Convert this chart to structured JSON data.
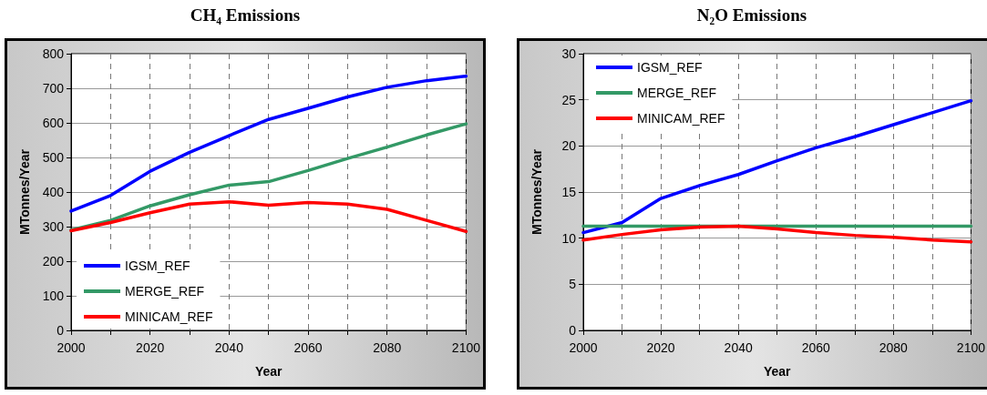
{
  "chart_data": [
    {
      "type": "line",
      "title": "CH₄ Emissions",
      "xlabel": "Year",
      "ylabel": "MTonnes/Year",
      "x": [
        2000,
        2010,
        2020,
        2030,
        2040,
        2050,
        2060,
        2070,
        2080,
        2090,
        2100
      ],
      "series": [
        {
          "name": "IGSM_REF",
          "color": "#0000ff",
          "values": [
            345,
            390,
            460,
            515,
            563,
            610,
            642,
            675,
            703,
            722,
            735
          ]
        },
        {
          "name": "MERGE_REF",
          "color": "#339966",
          "values": [
            290,
            318,
            360,
            392,
            420,
            430,
            462,
            497,
            530,
            565,
            597
          ]
        },
        {
          "name": "MINICAM_REF",
          "color": "#ff0000",
          "values": [
            288,
            312,
            340,
            365,
            372,
            362,
            370,
            365,
            350,
            318,
            286
          ]
        }
      ],
      "xlim": [
        2000,
        2100
      ],
      "xticks": [
        2000,
        {
          "value": 2010,
          "label": null
        },
        2020,
        {
          "value": 2030,
          "label": null
        },
        2040,
        {
          "value": 2050,
          "label": null
        },
        2060,
        {
          "value": 2070,
          "label": null
        },
        2080,
        {
          "value": 2090,
          "label": null
        },
        2100
      ],
      "ylim": [
        0,
        800
      ],
      "yticks": [
        0,
        100,
        200,
        300,
        400,
        500,
        600,
        700,
        800
      ],
      "grid": true,
      "legend": "bottom left",
      "marker": "none"
    },
    {
      "type": "line",
      "title": "N₂O Emissions",
      "xlabel": "Year",
      "ylabel": "MTonnes/Year",
      "x": [
        2000,
        2010,
        2020,
        2030,
        2040,
        2050,
        2060,
        2070,
        2080,
        2090,
        2100
      ],
      "series": [
        {
          "name": "IGSM_REF",
          "color": "#0000ff",
          "values": [
            10.6,
            11.7,
            14.3,
            15.7,
            16.9,
            18.4,
            19.8,
            21.0,
            22.3,
            23.6,
            24.9
          ]
        },
        {
          "name": "MERGE_REF",
          "color": "#339966",
          "values": [
            11.3,
            11.3,
            11.3,
            11.3,
            11.3,
            11.3,
            11.3,
            11.3,
            11.3,
            11.3,
            11.3
          ]
        },
        {
          "name": "MINICAM_REF",
          "color": "#ff0000",
          "values": [
            9.8,
            10.4,
            10.9,
            11.2,
            11.3,
            11.0,
            10.6,
            10.3,
            10.1,
            9.8,
            9.6
          ]
        }
      ],
      "xlim": [
        2000,
        2100
      ],
      "xticks": [
        2000,
        {
          "value": 2010,
          "label": null
        },
        2020,
        {
          "value": 2030,
          "label": null
        },
        2040,
        {
          "value": 2050,
          "label": null
        },
        2060,
        {
          "value": 2070,
          "label": null
        },
        2080,
        {
          "value": 2090,
          "label": null
        },
        2100
      ],
      "ylim": [
        0,
        30
      ],
      "yticks": [
        0,
        5,
        10,
        15,
        20,
        25,
        30
      ],
      "grid": true,
      "legend": "top left",
      "marker": "none"
    }
  ]
}
